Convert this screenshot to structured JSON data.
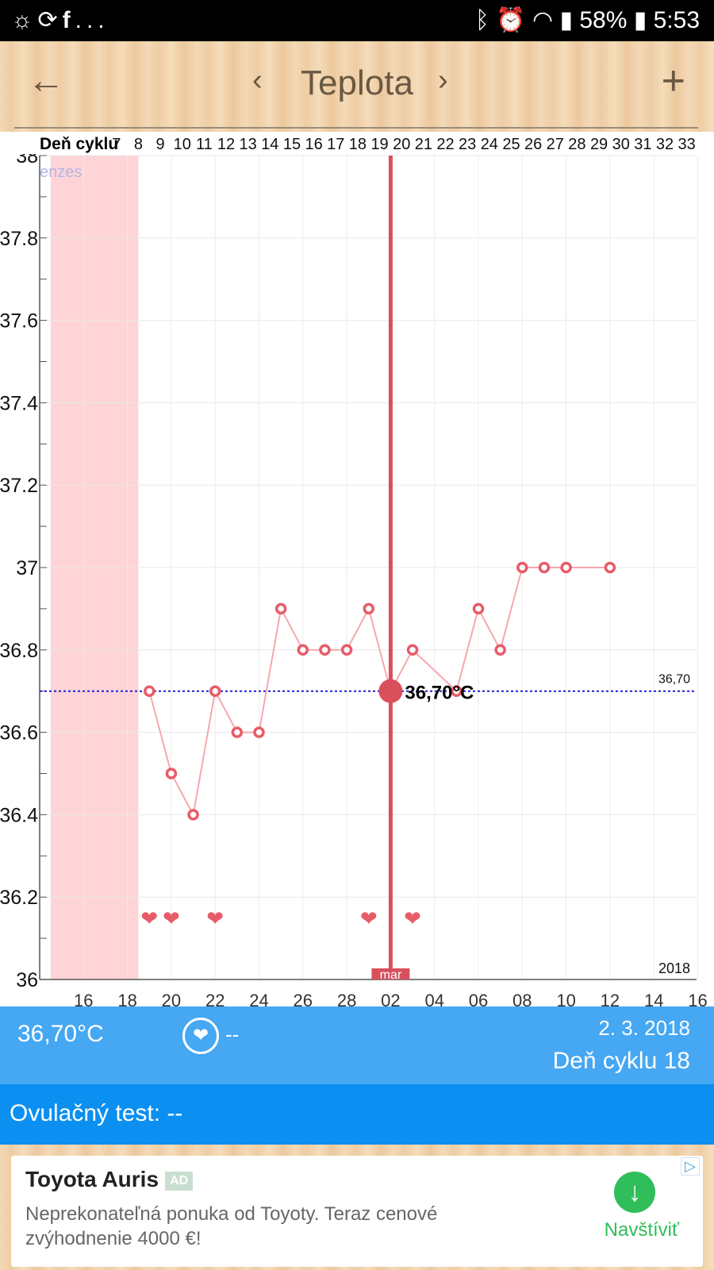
{
  "status_bar": {
    "left_icons": [
      "sun-timer-icon",
      "sync-icon",
      "facebook-icon"
    ],
    "left_more": "...",
    "right_icons": [
      "bluetooth-icon",
      "alarm-icon",
      "wifi-icon",
      "signal-icon",
      "battery-icon"
    ],
    "battery": "58%",
    "time": "5:53"
  },
  "app_bar": {
    "back_icon": "arrow-left-icon",
    "prev_icon": "chevron-left-icon",
    "title": "Teplota",
    "next_icon": "chevron-right-icon",
    "add_icon": "plus-icon"
  },
  "chart_data": {
    "type": "line",
    "cycle_label": "Deň cyklu",
    "cycle_days": [
      "7",
      "8",
      "9",
      "10",
      "11",
      "12",
      "13",
      "14",
      "15",
      "16",
      "17",
      "18",
      "19",
      "20",
      "21",
      "22",
      "23",
      "24",
      "25",
      "26",
      "27",
      "28",
      "29",
      "30",
      "31",
      "32",
      "33"
    ],
    "menses_label": "enzes",
    "x_ticks": [
      "16",
      "18",
      "20",
      "22",
      "24",
      "26",
      "28",
      "02",
      "04",
      "06",
      "08",
      "10",
      "12",
      "14",
      "16"
    ],
    "ylim": [
      36,
      38
    ],
    "y_ticks": [
      "38",
      "37.8",
      "37.6",
      "37.4",
      "37.2",
      "37",
      "36.8",
      "36.6",
      "36.4",
      "36.2",
      "36"
    ],
    "series": [
      {
        "x": [
          "2018-02-19",
          "2018-02-20",
          "2018-02-21",
          "2018-02-22",
          "2018-02-23",
          "2018-02-24",
          "2018-02-25",
          "2018-02-26",
          "2018-02-27",
          "2018-02-28",
          "2018-03-01",
          "2018-03-02",
          "2018-03-03",
          "2018-03-05",
          "2018-03-06",
          "2018-03-07",
          "2018-03-08",
          "2018-03-09",
          "2018-03-10",
          "2018-03-12"
        ],
        "values": [
          36.7,
          36.5,
          36.4,
          36.7,
          36.6,
          36.6,
          36.9,
          36.8,
          36.8,
          36.8,
          36.9,
          36.7,
          36.8,
          36.7,
          36.9,
          36.8,
          37.0,
          37.0,
          37.0,
          37.0
        ]
      }
    ],
    "intercourse_dates": [
      "2018-02-19",
      "2018-02-20",
      "2018-02-22",
      "2018-03-01",
      "2018-03-03"
    ],
    "menses_range": [
      "2018-02-15",
      "2018-02-18"
    ],
    "baseline": 36.7,
    "baseline_label": "36,70",
    "selected_date": "2018-03-02",
    "selected_value_label": "36,70°C",
    "month_label": "mar",
    "year_label": "2018",
    "grid": true,
    "colors": {
      "line": "#f6a7ae",
      "marker": "#e85b68",
      "selection": "#d94f5c",
      "menses": "#ffd4d7",
      "baseline": "#1f1fd6"
    }
  },
  "info_panel": {
    "temperature": "36,70°C",
    "heart_icon": "heart-circle-icon",
    "intercourse": "--",
    "date": "2. 3. 2018",
    "cycle_day": "Deň cyklu 18"
  },
  "ovulation": {
    "label": "Ovulačný test: --"
  },
  "ad": {
    "title": "Toyota Auris",
    "badge": "AD",
    "text": "Neprekonateľná ponuka od Toyoty. Teraz cenové zvýhodnenie 4000 €!",
    "button_icon": "download-arrow-icon",
    "button": "Navštíviť",
    "adchoices_icon": "adchoices-icon"
  }
}
